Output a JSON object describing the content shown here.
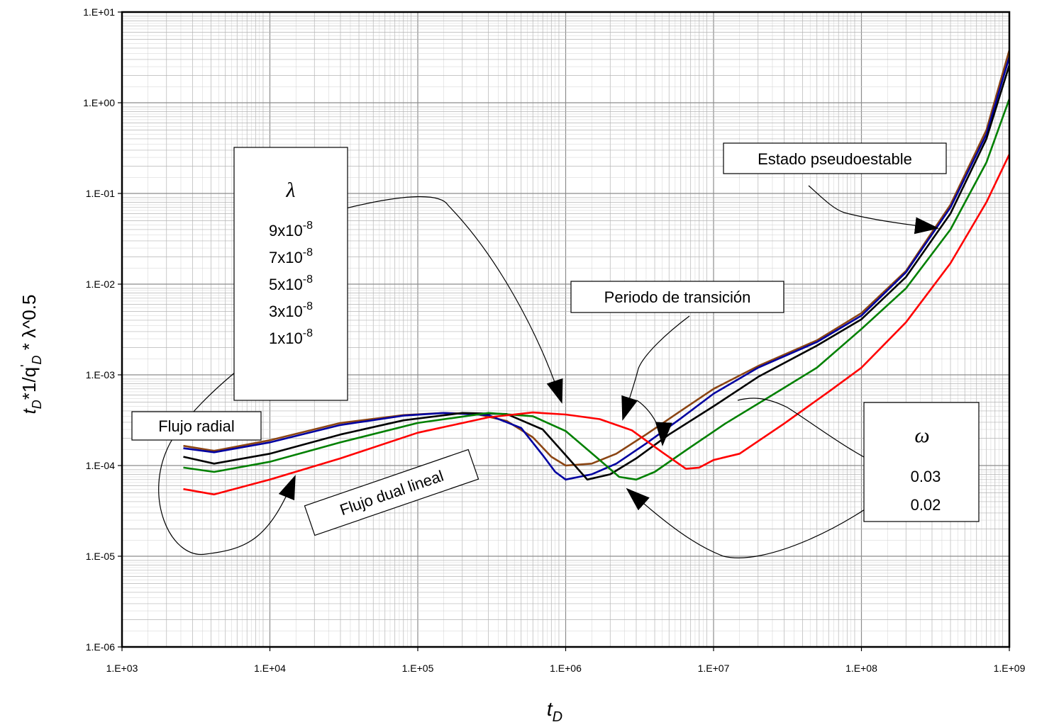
{
  "chart_data": {
    "type": "line",
    "xscale": "log",
    "yscale": "log",
    "xlim": [
      1000,
      1000000000
    ],
    "ylim": [
      1e-06,
      10
    ],
    "grid": true,
    "x_tick_labels": [
      "1.E+03",
      "1.E+04",
      "1.E+05",
      "1.E+06",
      "1.E+07",
      "1.E+08",
      "1.E+09"
    ],
    "y_tick_labels": [
      "1.E+01",
      "1.E+00",
      "1.E-01",
      "1.E-02",
      "1.E-03",
      "1.E-04",
      "1.E-05",
      "1.E-06"
    ],
    "xlabel": {
      "main": "t",
      "sub": "D"
    },
    "ylabel": {
      "t": "t",
      "sub1": "D",
      "mid": "*1/q",
      "sup": "'",
      "sub2": "D",
      "tail": " * λ^0.5"
    },
    "series": [
      {
        "color": "#8B4513",
        "x": [
          2600,
          4200,
          10000,
          30000,
          80000,
          150000,
          250000,
          400000,
          600000,
          800000,
          1000000,
          1500000,
          2200000,
          3500000,
          6000000,
          10000000,
          20000000,
          50000000,
          100000000,
          200000000,
          400000000,
          700000000,
          1000000000
        ],
        "y": [
          0.000165,
          0.000145,
          0.00019,
          0.000295,
          0.00036,
          0.00038,
          0.00037,
          0.00031,
          0.000205,
          0.000125,
          0.0001,
          0.000105,
          0.000135,
          0.00022,
          0.0004,
          0.0007,
          0.00125,
          0.0024,
          0.0048,
          0.014,
          0.075,
          0.5,
          3.8
        ]
      },
      {
        "color": "#0000a0",
        "x": [
          2600,
          4200,
          10000,
          30000,
          80000,
          150000,
          300000,
          500000,
          700000,
          850000,
          1000000,
          1500000,
          2200000,
          3500000,
          6000000,
          10000000,
          20000000,
          50000000,
          100000000,
          200000000,
          400000000,
          700000000,
          1000000000
        ],
        "y": [
          0.000155,
          0.00014,
          0.00018,
          0.00028,
          0.000355,
          0.00038,
          0.00036,
          0.00026,
          0.00013,
          8.5e-05,
          7e-05,
          8e-05,
          0.000105,
          0.000175,
          0.00033,
          0.00062,
          0.0012,
          0.0023,
          0.0045,
          0.0135,
          0.07,
          0.45,
          3.2
        ]
      },
      {
        "color": "#000000",
        "x": [
          2600,
          4200,
          10000,
          30000,
          80000,
          200000,
          400000,
          700000,
          1000000,
          1400000,
          2000000,
          3000000,
          5000000,
          10000000,
          20000000,
          50000000,
          100000000,
          200000000,
          400000000,
          700000000,
          1000000000
        ],
        "y": [
          0.000125,
          0.000105,
          0.000135,
          0.00022,
          0.000315,
          0.00038,
          0.00037,
          0.00025,
          0.00013,
          7e-05,
          8e-05,
          0.00012,
          0.00022,
          0.00045,
          0.00095,
          0.0021,
          0.0041,
          0.012,
          0.06,
          0.4,
          2.6
        ]
      },
      {
        "color": "#008000",
        "x": [
          2600,
          4200,
          10000,
          30000,
          100000,
          300000,
          600000,
          1000000,
          1600000,
          2300000,
          3000000,
          4000000,
          7000000,
          12000000,
          25000000,
          50000000,
          100000000,
          200000000,
          400000000,
          700000000,
          1000000000
        ],
        "y": [
          9.5e-05,
          8.5e-05,
          0.00011,
          0.00018,
          0.000295,
          0.00038,
          0.00035,
          0.00024,
          0.000125,
          7.5e-05,
          7e-05,
          8.5e-05,
          0.00016,
          0.00029,
          0.0006,
          0.0012,
          0.0032,
          0.009,
          0.04,
          0.22,
          1.1
        ]
      },
      {
        "color": "#ff0000",
        "x": [
          2600,
          4200,
          10000,
          30000,
          100000,
          300000,
          600000,
          1000000,
          1700000,
          2800000,
          4500000,
          6500000,
          8000000,
          10000000,
          15000000,
          30000000,
          60000000,
          100000000,
          200000000,
          400000000,
          700000000,
          1000000000
        ],
        "y": [
          5.5e-05,
          4.8e-05,
          7e-05,
          0.00012,
          0.00023,
          0.00034,
          0.000385,
          0.000365,
          0.000325,
          0.000245,
          0.00014,
          9.2e-05,
          9.5e-05,
          0.000115,
          0.000135,
          0.00029,
          0.00065,
          0.0012,
          0.0038,
          0.017,
          0.08,
          0.27
        ]
      }
    ],
    "annotations": {
      "lambda_box": {
        "symbol": "λ",
        "mant": "x10",
        "exp": "-8",
        "values": [
          "9",
          "7",
          "5",
          "3",
          "1"
        ]
      },
      "omega_box": {
        "symbol": "ω",
        "values": [
          "0.03",
          "0.02"
        ]
      },
      "labels": {
        "flujo_radial": "Flujo radial",
        "flujo_dual_lineal": "Flujo dual lineal",
        "periodo_transicion": "Periodo de transición",
        "estado_pseudoestable": "Estado pseudoestable"
      }
    }
  }
}
